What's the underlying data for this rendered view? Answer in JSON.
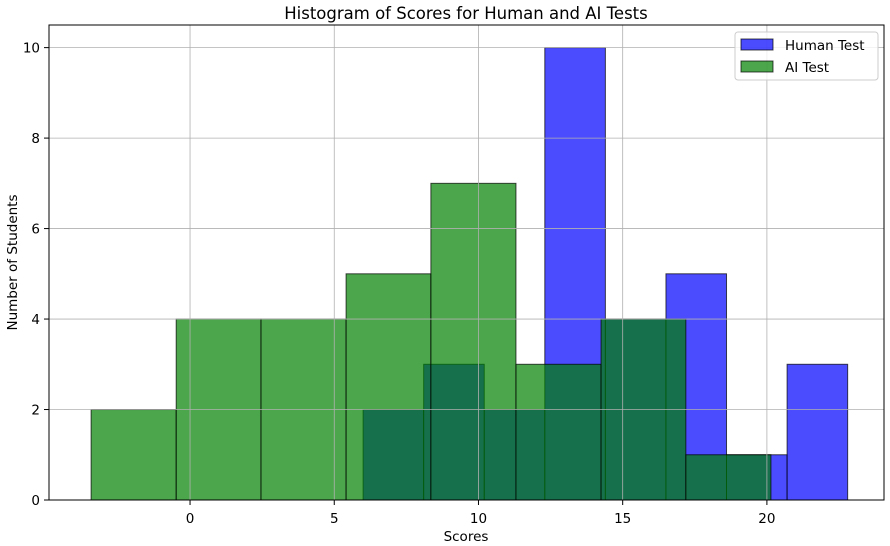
{
  "chart_data": {
    "type": "bar",
    "title": "Histogram of Scores for Human and AI Tests",
    "xlabel": "Scores",
    "ylabel": "Number of Students",
    "xlim": [
      -4.89,
      24.06
    ],
    "ylim": [
      0,
      10.5
    ],
    "xticks": [
      0,
      5,
      10,
      15,
      20
    ],
    "yticks": [
      0,
      2,
      4,
      6,
      8,
      10
    ],
    "grid": true,
    "legend": "top-right",
    "series": [
      {
        "name": "Human Test",
        "color": "#0000ff",
        "bin_edges": [
          6.0,
          8.1,
          10.2,
          12.3,
          14.4,
          16.5,
          18.6,
          20.7,
          22.8
        ],
        "counts": [
          2,
          3,
          2,
          10,
          4,
          5,
          1,
          3
        ]
      },
      {
        "name": "AI Test",
        "color": "#008000",
        "bin_edges": [
          -3.43,
          -0.48,
          2.46,
          5.41,
          8.35,
          11.3,
          14.25,
          17.19,
          20.14
        ],
        "counts": [
          2,
          4,
          4,
          5,
          7,
          3,
          4,
          1
        ]
      }
    ]
  }
}
